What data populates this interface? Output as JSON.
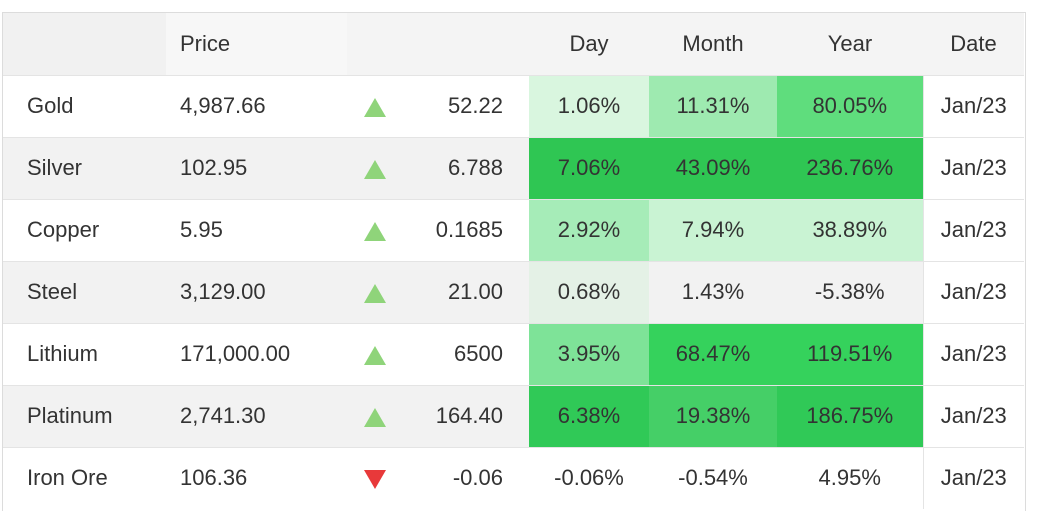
{
  "header": {
    "name": "",
    "price": "Price",
    "day": "Day",
    "month": "Month",
    "year": "Year",
    "date": "Date"
  },
  "rows": [
    {
      "name": "Gold",
      "price": "4,987.66",
      "direction": "up",
      "change": "52.22",
      "day": "1.06%",
      "month": "11.31%",
      "year": "80.05%",
      "date": "Jan/23",
      "day_color": "#d9f6df",
      "month_color": "#9eeab0",
      "year_color": "#5fdd7d"
    },
    {
      "name": "Silver",
      "price": "102.95",
      "direction": "up",
      "change": "6.788",
      "day": "7.06%",
      "month": "43.09%",
      "year": "236.76%",
      "date": "Jan/23",
      "day_color": "#2fc653",
      "month_color": "#2fc653",
      "year_color": "#2fc653"
    },
    {
      "name": "Copper",
      "price": "5.95",
      "direction": "up",
      "change": "0.1685",
      "day": "2.92%",
      "month": "7.94%",
      "year": "38.89%",
      "date": "Jan/23",
      "day_color": "#a6ecb8",
      "month_color": "#c9f3d3",
      "year_color": "#c9f3d3"
    },
    {
      "name": "Steel",
      "price": "3,129.00",
      "direction": "up",
      "change": "21.00",
      "day": "0.68%",
      "month": "1.43%",
      "year": "-5.38%",
      "date": "Jan/23",
      "day_color": "#e4f1e6",
      "month_color": "",
      "year_color": ""
    },
    {
      "name": "Lithium",
      "price": "171,000.00",
      "direction": "up",
      "change": "6500",
      "day": "3.95%",
      "month": "68.47%",
      "year": "119.51%",
      "date": "Jan/23",
      "day_color": "#7ee398",
      "month_color": "#35d25c",
      "year_color": "#35d25c"
    },
    {
      "name": "Platinum",
      "price": "2,741.30",
      "direction": "up",
      "change": "164.40",
      "day": "6.38%",
      "month": "19.38%",
      "year": "186.75%",
      "date": "Jan/23",
      "day_color": "#30c957",
      "month_color": "#45cf67",
      "year_color": "#30c957"
    },
    {
      "name": "Iron Ore",
      "price": "106.36",
      "direction": "down",
      "change": "-0.06",
      "day": "-0.06%",
      "month": "-0.54%",
      "year": "4.95%",
      "date": "Jan/23",
      "day_color": "",
      "month_color": "",
      "year_color": ""
    }
  ]
}
